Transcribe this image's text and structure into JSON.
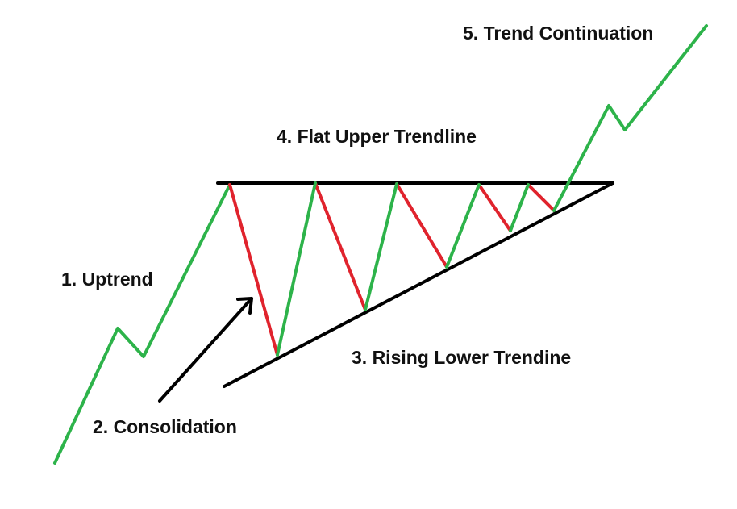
{
  "labels": {
    "uptrend": "1. Uptrend",
    "consolidation": "2. Consolidation",
    "lower_trendline": "3. Rising Lower Trendine",
    "upper_trendline": "4. Flat Upper Trendline",
    "continuation": "5. Trend Continuation"
  },
  "colors": {
    "up_move": "#2db34a",
    "down_move": "#e0232d",
    "trendline": "#000000",
    "text": "#111111",
    "background": "#ffffff"
  }
}
